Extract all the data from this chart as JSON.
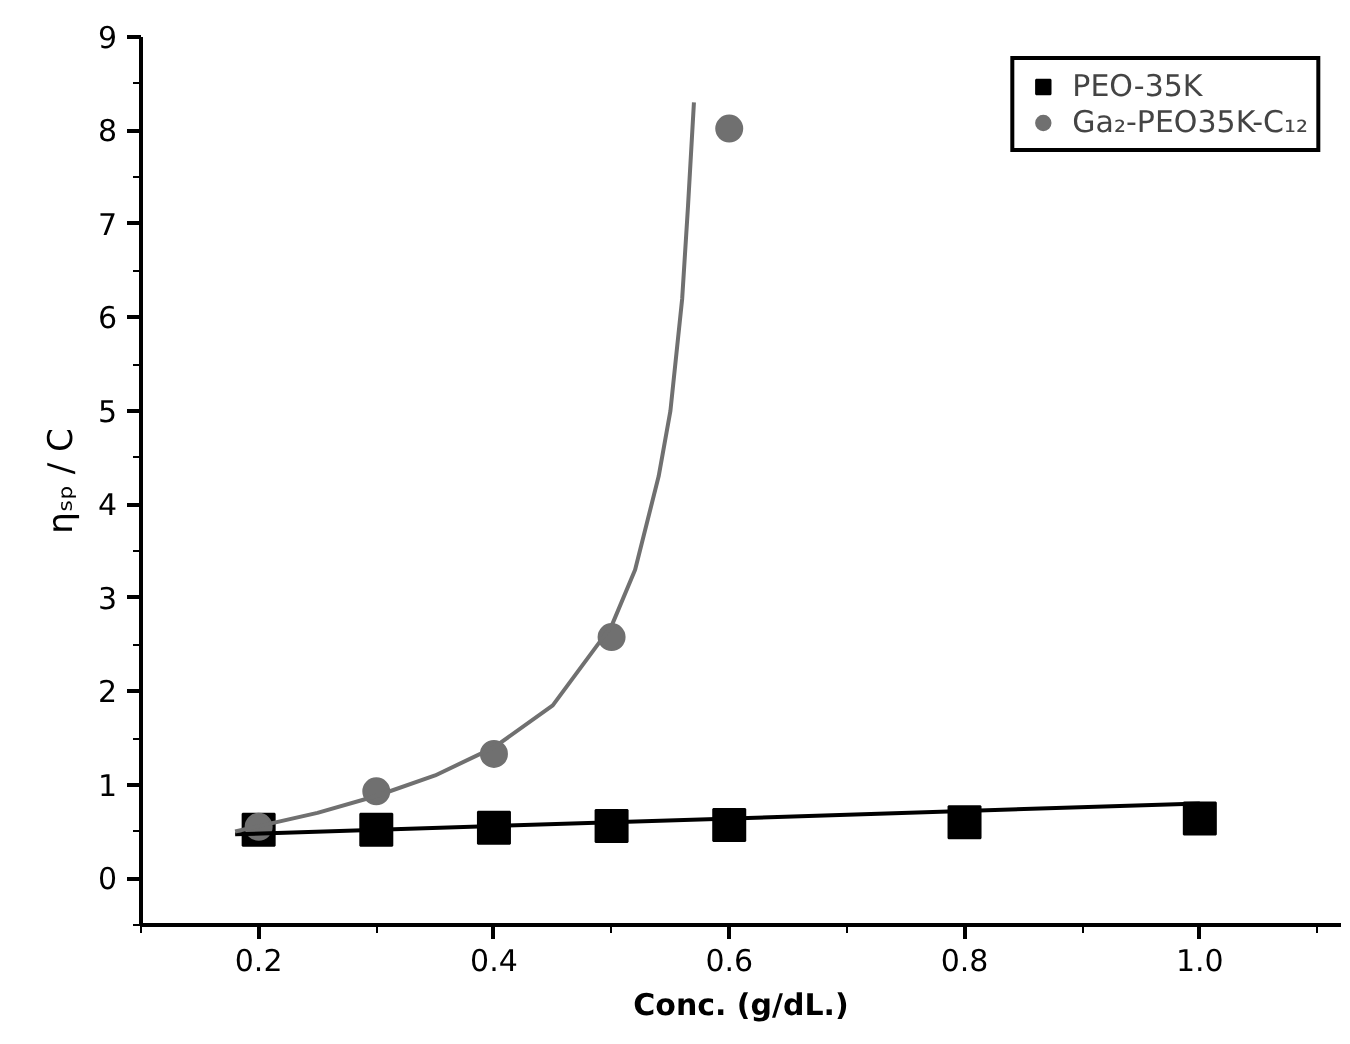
{
  "chart_data": {
    "type": "scatter",
    "xlabel": "Conc. (g/dL.)",
    "ylabel": "ηₛₚ / C",
    "xlim": [
      0.1,
      1.12
    ],
    "ylim": [
      -0.5,
      9
    ],
    "xticks": [
      0.2,
      0.4,
      0.6,
      0.8,
      {
        "value": 1.0,
        "label": "1.0"
      }
    ],
    "yticks": [
      0,
      1,
      2,
      3,
      4,
      5,
      6,
      7,
      8,
      9
    ],
    "grid": false,
    "legend": "top right",
    "series": [
      {
        "name": "PEO-35K",
        "marker": "square",
        "color": "#000000",
        "x": [
          0.2,
          0.3,
          0.4,
          0.5,
          0.6,
          0.8,
          1.0
        ],
        "values": [
          0.52,
          0.52,
          0.54,
          0.56,
          0.57,
          0.6,
          0.64
        ]
      },
      {
        "name": "Ga₂-PEO35K-C₁₂",
        "marker": "circle",
        "color": "#707070",
        "x": [
          0.2,
          0.3,
          0.4,
          0.5,
          0.6
        ],
        "values": [
          0.55,
          0.93,
          1.33,
          2.58,
          8.02
        ]
      },
      {
        "type": "line",
        "color": "#000000",
        "x": [
          0.18,
          1.0
        ],
        "values": [
          0.47,
          0.8
        ]
      },
      {
        "type": "line",
        "color": "#707070",
        "x": [
          0.18,
          0.25,
          0.3,
          0.35,
          0.4,
          0.45,
          0.5,
          0.52,
          0.54,
          0.55,
          0.56,
          0.565,
          0.57
        ],
        "values": [
          0.5,
          0.7,
          0.88,
          1.1,
          1.4,
          1.85,
          2.7,
          3.3,
          4.3,
          5.0,
          6.2,
          7.2,
          8.3
        ]
      }
    ]
  }
}
